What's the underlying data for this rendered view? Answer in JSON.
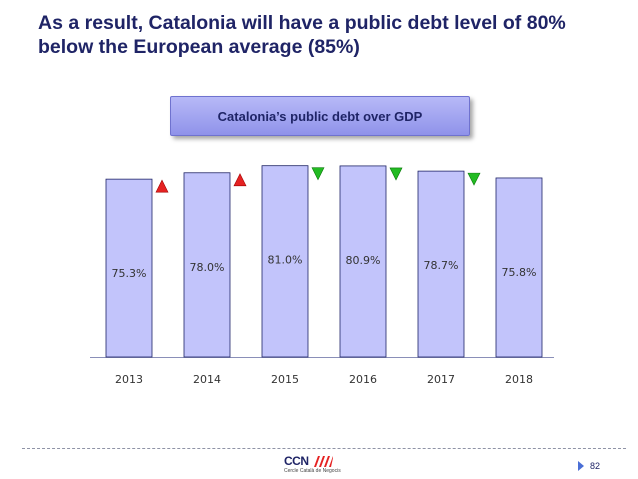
{
  "slide": {
    "title": "As a result, Catalonia will have a public debt level of 80% below the European average (85%)",
    "page_number": "82"
  },
  "logo": {
    "name": "CCN",
    "subtitle": "Cercle Català de Negocis"
  },
  "colors": {
    "bar_fill": "#c2c4fb",
    "bar_stroke": "#1f2466",
    "arrow_up": "#e52222",
    "arrow_down": "#22bb22",
    "title": "#1f2466",
    "tick_text": "#333333"
  },
  "chart_data": {
    "type": "bar",
    "title": "Catalonia’s public debt over GDP",
    "categories": [
      "2013",
      "2014",
      "2015",
      "2016",
      "2017",
      "2018"
    ],
    "values": [
      75.3,
      78.0,
      81.0,
      80.9,
      78.7,
      75.8
    ],
    "data_labels": [
      "75.3%",
      "78.0%",
      "81.0%",
      "80.9%",
      "78.7%",
      "75.8%"
    ],
    "trend_markers": [
      "up",
      "up",
      "down",
      "down",
      "down",
      null
    ],
    "xlabel": "",
    "ylabel": "",
    "ylim": [
      0,
      85.1
    ],
    "grid": false,
    "legend": "none"
  }
}
